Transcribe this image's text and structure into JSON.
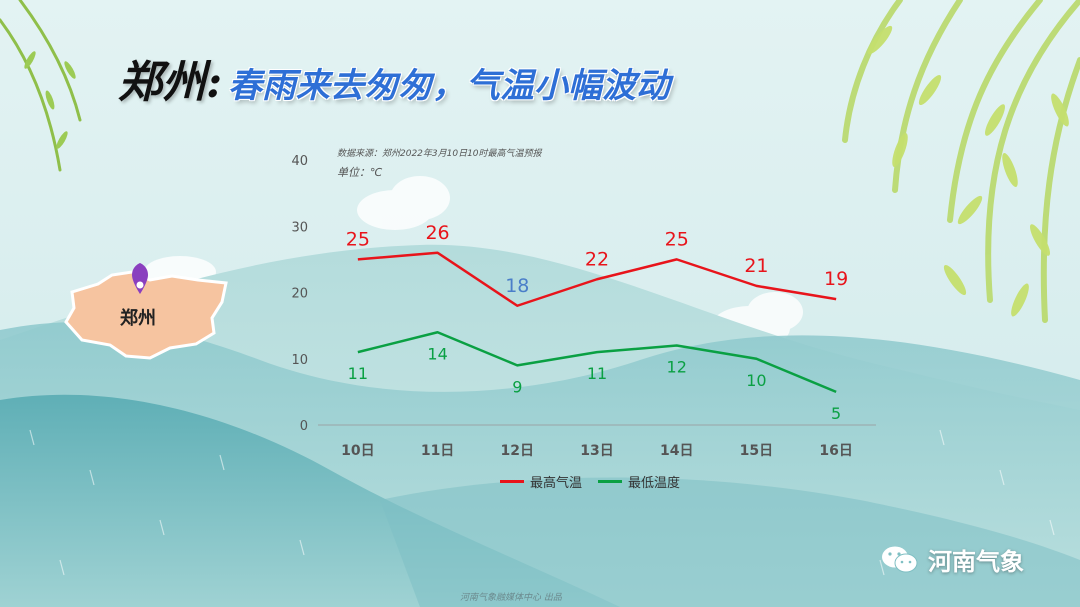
{
  "title": {
    "city": "郑州",
    "colon": ":",
    "subtitle": "春雨来去匆匆，气温小幅波动"
  },
  "chart_data": {
    "type": "line",
    "source_note": "数据来源：郑州2022年3月10日10时最高气温预报",
    "unit_note": "单位：℃",
    "categories": [
      "10日",
      "11日",
      "12日",
      "13日",
      "14日",
      "15日",
      "16日"
    ],
    "ylim": [
      0,
      40
    ],
    "yticks": [
      "0",
      "10",
      "20",
      "30",
      "40"
    ],
    "grid": false,
    "legend_position": "bottom",
    "series": [
      {
        "name": "最高气温",
        "values": [
          25,
          26,
          18,
          22,
          25,
          21,
          19
        ],
        "color": "#e8141b",
        "label_color": "#e8141b",
        "special_label_colors": {
          "2": "#4a7ec9"
        }
      },
      {
        "name": "最低温度",
        "values": [
          11,
          14,
          9,
          11,
          12,
          10,
          5
        ],
        "color": "#0aa043",
        "label_color": "#0aa043"
      }
    ]
  },
  "map": {
    "label": "郑州",
    "marker_color": "#8a3fbf"
  },
  "brand": {
    "name": "河南气象",
    "icon": "wechat-icon"
  },
  "footer": "河南气象融媒体中心  出品"
}
